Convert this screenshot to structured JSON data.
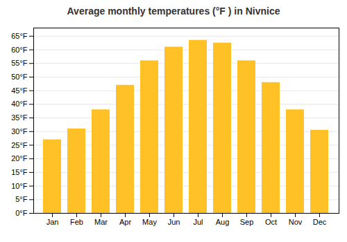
{
  "chart_data": {
    "type": "bar",
    "title": "Average monthly temperatures (°F ) in Nivnice",
    "categories": [
      "Jan",
      "Feb",
      "Mar",
      "Apr",
      "May",
      "Jun",
      "Jul",
      "Aug",
      "Sep",
      "Oct",
      "Nov",
      "Dec"
    ],
    "values": [
      27,
      31,
      38,
      47,
      56,
      61,
      63.5,
      62.5,
      56,
      48,
      38,
      30.5
    ],
    "color": "#FFC125",
    "ylim": [
      0,
      68
    ],
    "yticks": [
      {
        "value": 0,
        "label": "0°F"
      },
      {
        "value": 5,
        "label": "5°F"
      },
      {
        "value": 10,
        "label": "10°F"
      },
      {
        "value": 15,
        "label": "15°F"
      },
      {
        "value": 20,
        "label": "20°F"
      },
      {
        "value": 25,
        "label": "25°F"
      },
      {
        "value": 30,
        "label": "30°F"
      },
      {
        "value": 35,
        "label": "35°F"
      },
      {
        "value": 40,
        "label": "40°F"
      },
      {
        "value": 45,
        "label": "45°F"
      },
      {
        "value": 50,
        "label": "50°F"
      },
      {
        "value": 55,
        "label": "55°F"
      },
      {
        "value": 60,
        "label": "60°F"
      },
      {
        "value": 65,
        "label": "65°F"
      }
    ],
    "grid": true
  }
}
